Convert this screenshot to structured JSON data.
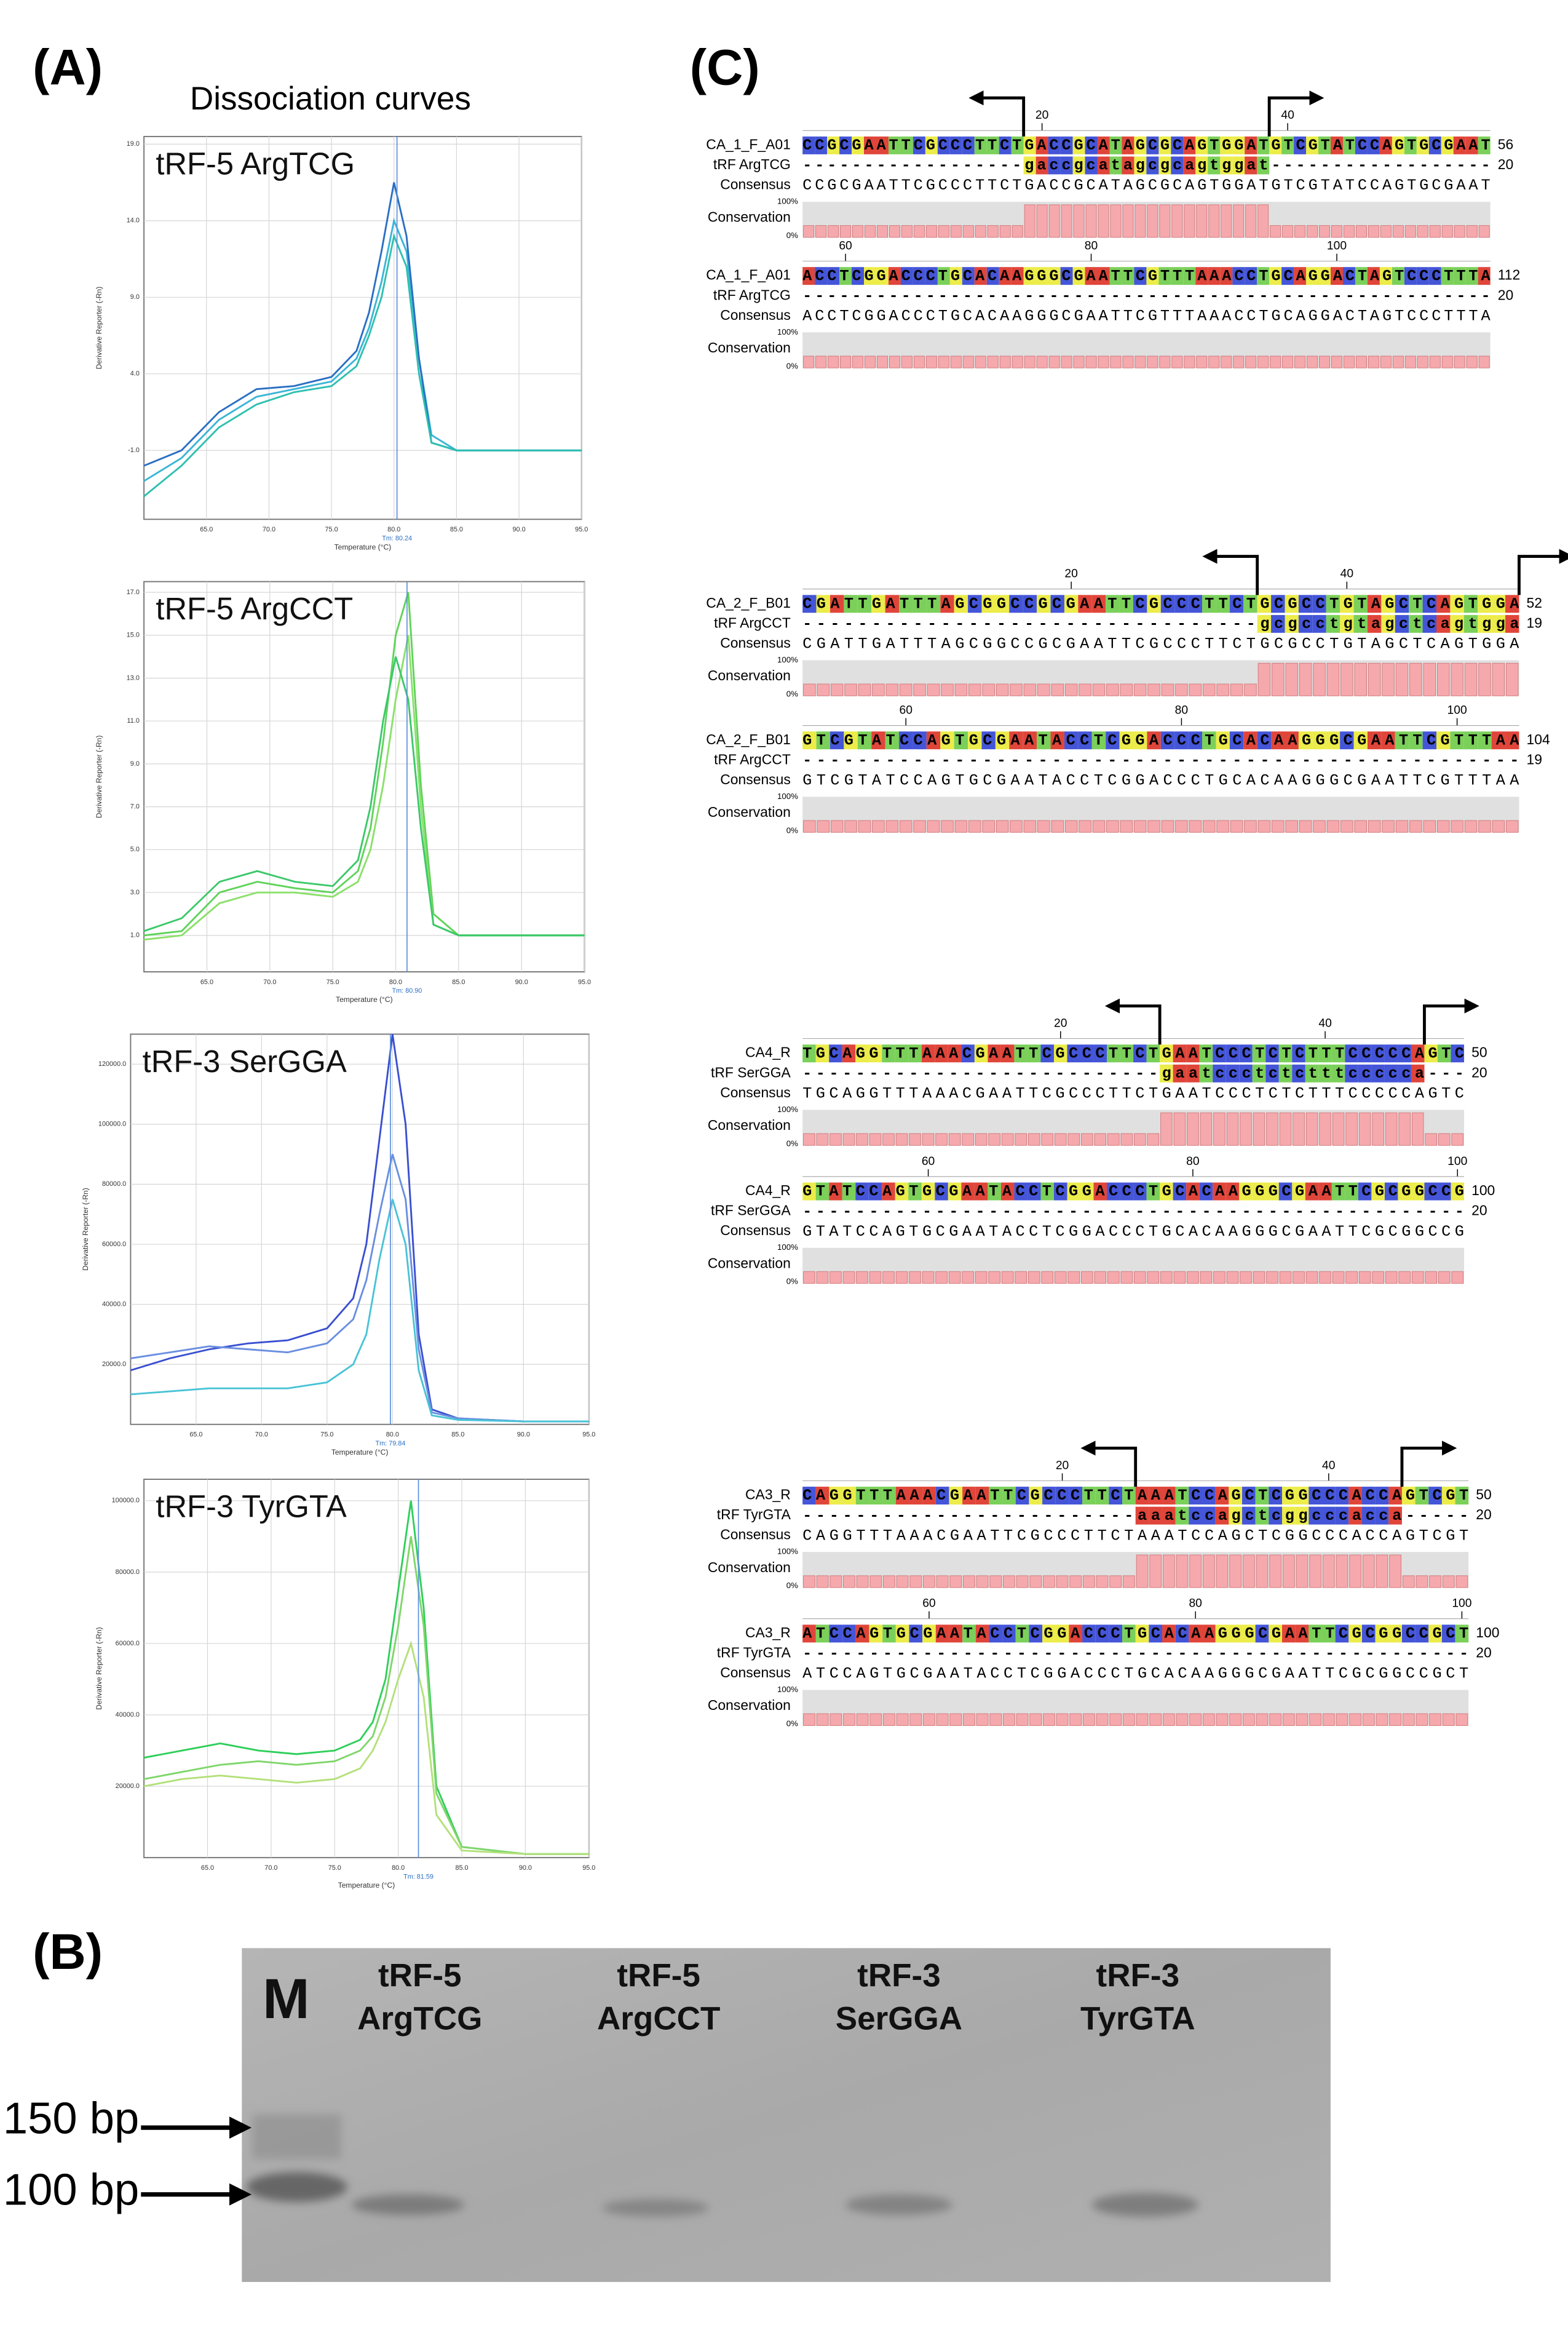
{
  "panel_a": {
    "label": "(A)",
    "heading": "Dissociation curves"
  },
  "chart_data": [
    {
      "type": "line",
      "title": "tRF-5 ArgTCG",
      "x_label": "Temperature (°C)",
      "y_label": "Derivative Reporter (-Rn)",
      "xlim": [
        60,
        95
      ],
      "xticks": [
        {
          "value": 65,
          "label": "65.0"
        },
        {
          "value": 70,
          "label": "70.0"
        },
        {
          "value": 75,
          "label": "75.0"
        },
        {
          "value": 80,
          "label": "80.0"
        },
        {
          "value": 85,
          "label": "85.0"
        },
        {
          "value": 90,
          "label": "90.0"
        },
        {
          "value": 95,
          "label": "95.0"
        }
      ],
      "ylim": [
        -5.5,
        19.5
      ],
      "yticks": [
        {
          "value": -1,
          "label": "-1.0"
        },
        {
          "value": 4,
          "label": "4.0"
        },
        {
          "value": 9,
          "label": "9.0"
        },
        {
          "value": 14,
          "label": "14.0"
        },
        {
          "value": 19,
          "label": "19.0"
        }
      ],
      "grid": true,
      "tm": {
        "value": 80.24,
        "label": "Tm: 80.24"
      },
      "x": [
        60,
        63,
        66,
        69,
        72,
        75,
        77,
        78,
        79,
        80,
        81,
        82,
        83,
        85,
        90,
        95
      ],
      "series": [
        {
          "color": "#3bb5d6",
          "values": [
            -3,
            -1.5,
            1,
            2.5,
            3,
            3.5,
            5,
            7,
            10,
            14,
            12,
            5,
            0,
            -1,
            -1,
            -1
          ]
        },
        {
          "color": "#2a6fc4",
          "values": [
            -2,
            -1,
            1.5,
            3,
            3.2,
            3.8,
            5.5,
            8,
            12,
            16.5,
            13,
            5,
            -0.5,
            -1,
            -1,
            -1
          ]
        },
        {
          "color": "#2fc0b0",
          "values": [
            -4,
            -2,
            0.5,
            2,
            2.8,
            3.2,
            4.5,
            6.5,
            9,
            13,
            11,
            4,
            -0.5,
            -1,
            -1,
            -1
          ]
        }
      ]
    },
    {
      "type": "line",
      "title": "tRF-5 ArgCCT",
      "x_label": "Temperature (°C)",
      "y_label": "Derivative Reporter (-Rn)",
      "xlim": [
        60,
        95
      ],
      "xticks": [
        {
          "value": 65,
          "label": "65.0"
        },
        {
          "value": 70,
          "label": "70.0"
        },
        {
          "value": 75,
          "label": "75.0"
        },
        {
          "value": 80,
          "label": "80.0"
        },
        {
          "value": 85,
          "label": "85.0"
        },
        {
          "value": 90,
          "label": "90.0"
        },
        {
          "value": 95,
          "label": "95.0"
        }
      ],
      "ylim": [
        -0.7,
        17.5
      ],
      "yticks": [
        {
          "value": 1,
          "label": "1.0"
        },
        {
          "value": 3,
          "label": "3.0"
        },
        {
          "value": 5,
          "label": "5.0"
        },
        {
          "value": 7,
          "label": "7.0"
        },
        {
          "value": 9,
          "label": "9.0"
        },
        {
          "value": 11,
          "label": "11.0"
        },
        {
          "value": 13,
          "label": "13.0"
        },
        {
          "value": 15,
          "label": "15.0"
        },
        {
          "value": 17,
          "label": "17.0"
        }
      ],
      "grid": true,
      "tm": {
        "value": 80.9,
        "label": "Tm: 80.90"
      },
      "x": [
        60,
        63,
        66,
        69,
        72,
        75,
        77,
        78,
        79,
        80,
        81,
        82,
        83,
        85,
        90,
        95
      ],
      "series": [
        {
          "color": "#5fd35a",
          "values": [
            1,
            1.2,
            3,
            3.5,
            3.2,
            3,
            4,
            6,
            10,
            15,
            17,
            8,
            2,
            1,
            1,
            1
          ]
        },
        {
          "color": "#8be06a",
          "values": [
            0.8,
            1,
            2.5,
            3,
            3,
            2.8,
            3.5,
            5,
            8,
            12,
            15,
            7,
            1.5,
            1,
            1,
            1
          ]
        },
        {
          "color": "#3cc86a",
          "values": [
            1.2,
            1.8,
            3.5,
            4,
            3.5,
            3.3,
            4.5,
            7,
            11,
            14,
            12,
            6,
            1.5,
            1,
            1,
            1
          ]
        }
      ]
    },
    {
      "type": "line",
      "title": "tRF-3 SerGGA",
      "x_label": "Temperature (°C)",
      "y_label": "Derivative Reporter (-Rn)",
      "xlim": [
        60,
        95
      ],
      "xticks": [
        {
          "value": 65,
          "label": "65.0"
        },
        {
          "value": 70,
          "label": "70.0"
        },
        {
          "value": 75,
          "label": "75.0"
        },
        {
          "value": 80,
          "label": "80.0"
        },
        {
          "value": 85,
          "label": "85.0"
        },
        {
          "value": 90,
          "label": "90.0"
        },
        {
          "value": 95,
          "label": "95.0"
        }
      ],
      "ylim": [
        0,
        130000
      ],
      "yticks": [
        {
          "value": 20000,
          "label": "20000.0"
        },
        {
          "value": 40000,
          "label": "40000.0"
        },
        {
          "value": 60000,
          "label": "60000.0"
        },
        {
          "value": 80000,
          "label": "80000.0"
        },
        {
          "value": 100000,
          "label": "100000.0"
        },
        {
          "value": 120000,
          "label": "120000.0"
        }
      ],
      "grid": true,
      "tm": {
        "value": 79.84,
        "label": "Tm: 79.84"
      },
      "x": [
        60,
        63,
        66,
        69,
        72,
        75,
        77,
        78,
        79,
        80,
        81,
        82,
        83,
        85,
        90,
        95
      ],
      "series": [
        {
          "color": "#3a4fd0",
          "values": [
            18000,
            22000,
            25000,
            27000,
            28000,
            32000,
            42000,
            60000,
            95000,
            130000,
            100000,
            30000,
            5000,
            2000,
            1000,
            1000
          ]
        },
        {
          "color": "#6a8fe0",
          "values": [
            22000,
            24000,
            26000,
            25000,
            24000,
            27000,
            35000,
            48000,
            70000,
            90000,
            75000,
            25000,
            4000,
            2000,
            1000,
            1000
          ]
        },
        {
          "color": "#49c3d6",
          "values": [
            10000,
            11000,
            12000,
            12000,
            12000,
            14000,
            20000,
            30000,
            55000,
            75000,
            60000,
            18000,
            3000,
            1500,
            1000,
            1000
          ]
        }
      ]
    },
    {
      "type": "line",
      "title": "tRF-3 TyrGTA",
      "x_label": "Temperature (°C)",
      "y_label": "Derivative Reporter (-Rn)",
      "xlim": [
        60,
        95
      ],
      "xticks": [
        {
          "value": 65,
          "label": "65.0"
        },
        {
          "value": 70,
          "label": "70.0"
        },
        {
          "value": 75,
          "label": "75.0"
        },
        {
          "value": 80,
          "label": "80.0"
        },
        {
          "value": 85,
          "label": "85.0"
        },
        {
          "value": 90,
          "label": "90.0"
        },
        {
          "value": 95,
          "label": "95.0"
        }
      ],
      "ylim": [
        0,
        106000
      ],
      "yticks": [
        {
          "value": 20000,
          "label": "20000.0"
        },
        {
          "value": 40000,
          "label": "40000.0"
        },
        {
          "value": 60000,
          "label": "60000.0"
        },
        {
          "value": 80000,
          "label": "80000.0"
        },
        {
          "value": 100000,
          "label": "100000.0"
        }
      ],
      "grid": true,
      "tm": {
        "value": 81.59,
        "label": "Tm: 81.59"
      },
      "x": [
        60,
        63,
        66,
        69,
        72,
        75,
        77,
        78,
        79,
        80,
        81,
        82,
        83,
        85,
        90,
        95
      ],
      "series": [
        {
          "color": "#2fcf5a",
          "values": [
            28000,
            30000,
            32000,
            30000,
            29000,
            30000,
            33000,
            38000,
            50000,
            75000,
            100000,
            70000,
            20000,
            3000,
            1000,
            1000
          ]
        },
        {
          "color": "#7fd66a",
          "values": [
            22000,
            24000,
            26000,
            27000,
            26000,
            27000,
            30000,
            34000,
            45000,
            65000,
            90000,
            65000,
            18000,
            3000,
            1000,
            1000
          ]
        },
        {
          "color": "#b3e07a",
          "values": [
            20000,
            22000,
            23000,
            22000,
            21000,
            22000,
            25000,
            30000,
            38000,
            50000,
            60000,
            45000,
            12000,
            2000,
            1000,
            1000
          ]
        }
      ]
    }
  ],
  "panel_b": {
    "label": "(B)",
    "marker": "M",
    "ladder": [
      "150 bp",
      "100 bp"
    ],
    "lanes": [
      [
        "tRF-5",
        "ArgTCG"
      ],
      [
        "tRF-5",
        "ArgCCT"
      ],
      [
        "tRF-3",
        "SerGGA"
      ],
      [
        "tRF-3",
        "TyrGTA"
      ]
    ]
  },
  "panel_c": {
    "label": "(C)",
    "conservation": "Conservation",
    "max": "100%",
    "min": "0%",
    "alignments": [
      {
        "blocks": [
          {
            "ruler": [
              20,
              40
            ],
            "rows": [
              {
                "name": "CA_1_F_A01",
                "seq": "CCGCGAATTCGCCCTTCTGACCGCATAGCGCAGTGGATGTCGTATCCAGTGCGAAT",
                "end": 56
              },
              {
                "name": "tRF ArgTCG",
                "seq": "------------------gaccgcatagcgcagtggat------------------",
                "end": 20
              },
              {
                "name": "Consensus",
                "seq": "CCGCGAATTCGCCCTTCTGACCGCATAGCGCAGTGGATGTCGTATCCAGTGCGAAT"
              }
            ]
          },
          {
            "ruler": [
              60,
              80,
              100
            ],
            "rows": [
              {
                "name": "CA_1_F_A01",
                "seq": "ACCTCGGACCCTGCACAAGGGCGAATTCGTTTAAACCTGCAGGACTAGTCCCTTTA",
                "end": 112
              },
              {
                "name": "tRF ArgTCG",
                "seq": "--------------------------------------------------------",
                "end": 20
              },
              {
                "name": "Consensus",
                "seq": "ACCTCGGACCCTGCACAAGGGCGAATTCGTTTAAACCTGCAGGACTAGTCCCTTTA"
              }
            ]
          }
        ]
      },
      {
        "blocks": [
          {
            "ruler": [
              20,
              40
            ],
            "rows": [
              {
                "name": "CA_2_F_B01",
                "seq": "CGATTGATTTAGCGGCCGCGAATTCGCCCTTCTGCGCCTGTAGCTCAGTGGA",
                "end": 52
              },
              {
                "name": "tRF ArgCCT",
                "seq": "---------------------------------gcgcctgtagctcagtgga",
                "end": 19
              },
              {
                "name": "Consensus",
                "seq": "CGATTGATTTAGCGGCCGCGAATTCGCCCTTCTGCGCCTGTAGCTCAGTGGA"
              }
            ]
          },
          {
            "ruler": [
              60,
              80,
              100
            ],
            "rows": [
              {
                "name": "CA_2_F_B01",
                "seq": "GTCGTATCCAGTGCGAATACCTCGGACCCTGCACAAGGGCGAATTCGTTTAA",
                "end": 104
              },
              {
                "name": "tRF ArgCCT",
                "seq": "----------------------------------------------------",
                "end": 19
              },
              {
                "name": "Consensus",
                "seq": "GTCGTATCCAGTGCGAATACCTCGGACCCTGCACAAGGGCGAATTCGTTTAA"
              }
            ]
          }
        ]
      },
      {
        "blocks": [
          {
            "ruler": [
              20,
              40
            ],
            "rows": [
              {
                "name": "CA4_R",
                "seq": "TGCAGGTTTAAACGAATTCGCCCTTCTGAATCCCTCTCTTTCCCCCAGTC",
                "end": 50
              },
              {
                "name": "tRF SerGGA",
                "seq": "---------------------------gaatccctctctttccccca---",
                "end": 20
              },
              {
                "name": "Consensus",
                "seq": "TGCAGGTTTAAACGAATTCGCCCTTCTGAATCCCTCTCTTTCCCCCAGTC"
              }
            ]
          },
          {
            "ruler": [
              60,
              80,
              100
            ],
            "rows": [
              {
                "name": "CA4_R",
                "seq": "GTATCCAGTGCGAATACCTCGGACCCTGCACAAGGGCGAATTCGCGGCCG",
                "end": 100
              },
              {
                "name": "tRF SerGGA",
                "seq": "--------------------------------------------------",
                "end": 20
              },
              {
                "name": "Consensus",
                "seq": "GTATCCAGTGCGAATACCTCGGACCCTGCACAAGGGCGAATTCGCGGCCG"
              }
            ]
          }
        ]
      },
      {
        "blocks": [
          {
            "ruler": [
              20,
              40
            ],
            "rows": [
              {
                "name": "CA3_R",
                "seq": "CAGGTTTAAACGAATTCGCCCTTCTAAATCCAGCTCGGCCCACCAGTCGT",
                "end": 50
              },
              {
                "name": "tRF TyrGTA",
                "seq": "-------------------------aaatccagctcggcccacca-----",
                "end": 20
              },
              {
                "name": "Consensus",
                "seq": "CAGGTTTAAACGAATTCGCCCTTCTAAATCCAGCTCGGCCCACCAGTCGT"
              }
            ]
          },
          {
            "ruler": [
              60,
              80,
              100
            ],
            "rows": [
              {
                "name": "CA3_R",
                "seq": "ATCCAGTGCGAATACCTCGGACCCTGCACAAGGGCGAATTCGCGGCCGCT",
                "end": 100
              },
              {
                "name": "tRF TyrGTA",
                "seq": "--------------------------------------------------",
                "end": 20
              },
              {
                "name": "Consensus",
                "seq": "ATCCAGTGCGAATACCTCGGACCCTGCACAAGGGCGAATTCGCGGCCGCT"
              }
            ]
          }
        ]
      }
    ]
  }
}
